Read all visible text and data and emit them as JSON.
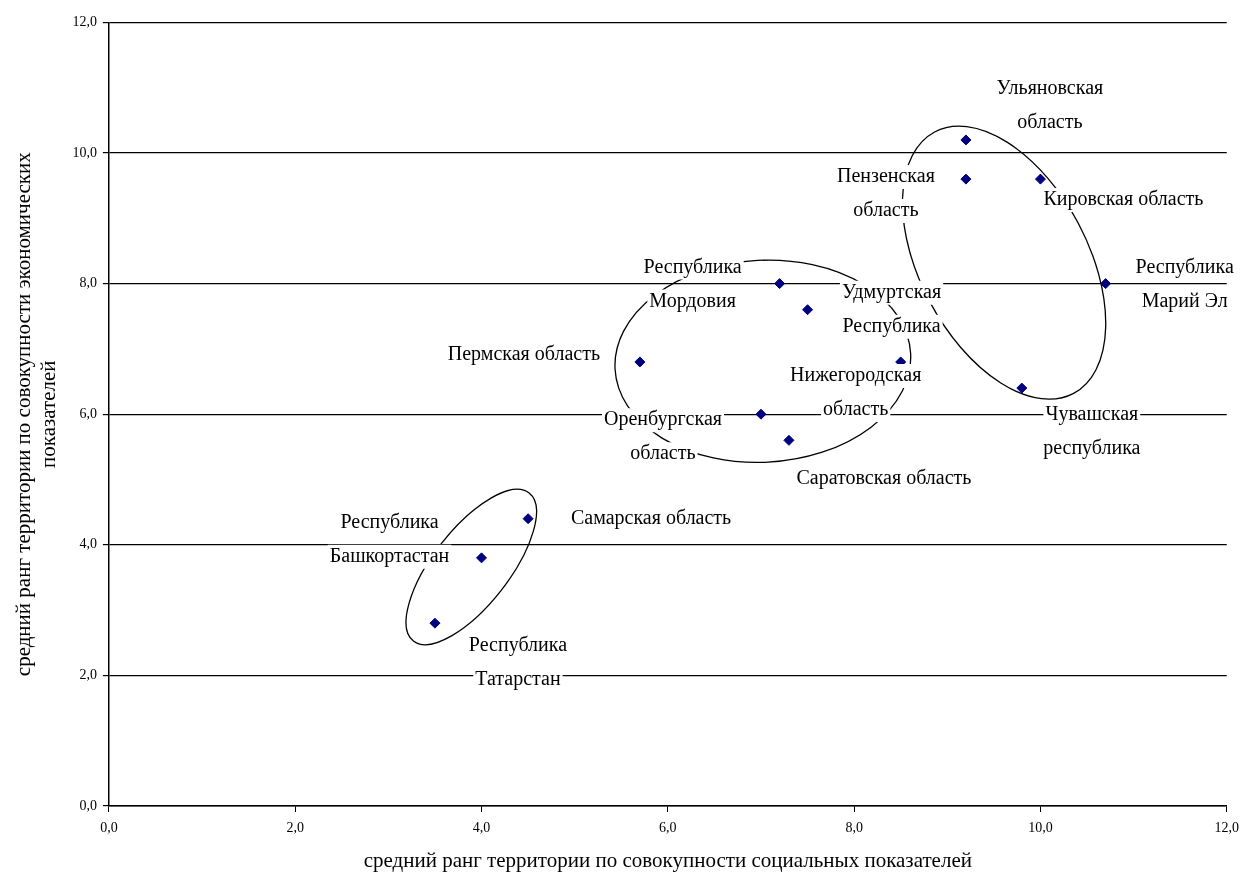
{
  "chart_data": {
    "type": "scatter",
    "xlabel": "средний ранг территории по совокупности социальных показателей",
    "ylabel": "средний ранг территории по совокупности экономических показателей",
    "series": [
      {
        "color": "#000080",
        "x": [
          9.2,
          9.2,
          10.0,
          10.7,
          9.8,
          7.2,
          7.5,
          5.7,
          8.5,
          7.0,
          7.3,
          4.5,
          4.0,
          3.5
        ],
        "values": [
          10.2,
          9.6,
          9.6,
          8.0,
          6.4,
          8.0,
          7.6,
          6.8,
          6.8,
          6.0,
          5.6,
          4.4,
          3.8,
          2.8
        ],
        "value_labels": [
          "Ульяновская область",
          "Пензенская область",
          "Кировская область",
          "Республика Марий Эл",
          "Чувашская республика",
          "Республика Мордовия",
          "Удмуртская Республика",
          "Пермская область",
          "Нижегородская область",
          "Оренбургская область",
          "Саратовская область",
          "Самарская область",
          "Республика Башкортастан",
          "Республика Татарстан"
        ]
      }
    ],
    "xlim": [
      0,
      12
    ],
    "ylim": [
      0,
      12
    ],
    "xticks": [
      {
        "value": 0,
        "label": "0,0"
      },
      {
        "value": 2,
        "label": "2,0"
      },
      {
        "value": 4,
        "label": "4,0"
      },
      {
        "value": 6,
        "label": "6,0"
      },
      {
        "value": 8,
        "label": "8,0"
      },
      {
        "value": 10,
        "label": "10,0"
      },
      {
        "value": 12,
        "label": "12,0"
      }
    ],
    "yticks": [
      {
        "value": 0,
        "label": "0,0"
      },
      {
        "value": 2,
        "label": "2,0"
      },
      {
        "value": 4,
        "label": "4,0"
      },
      {
        "value": 6,
        "label": "6,0"
      },
      {
        "value": 8,
        "label": "8,0"
      },
      {
        "value": 10,
        "label": "10,0"
      },
      {
        "value": 12,
        "label": "12,0"
      }
    ],
    "grid": "y",
    "legend": false,
    "marker": "diamond"
  }
}
